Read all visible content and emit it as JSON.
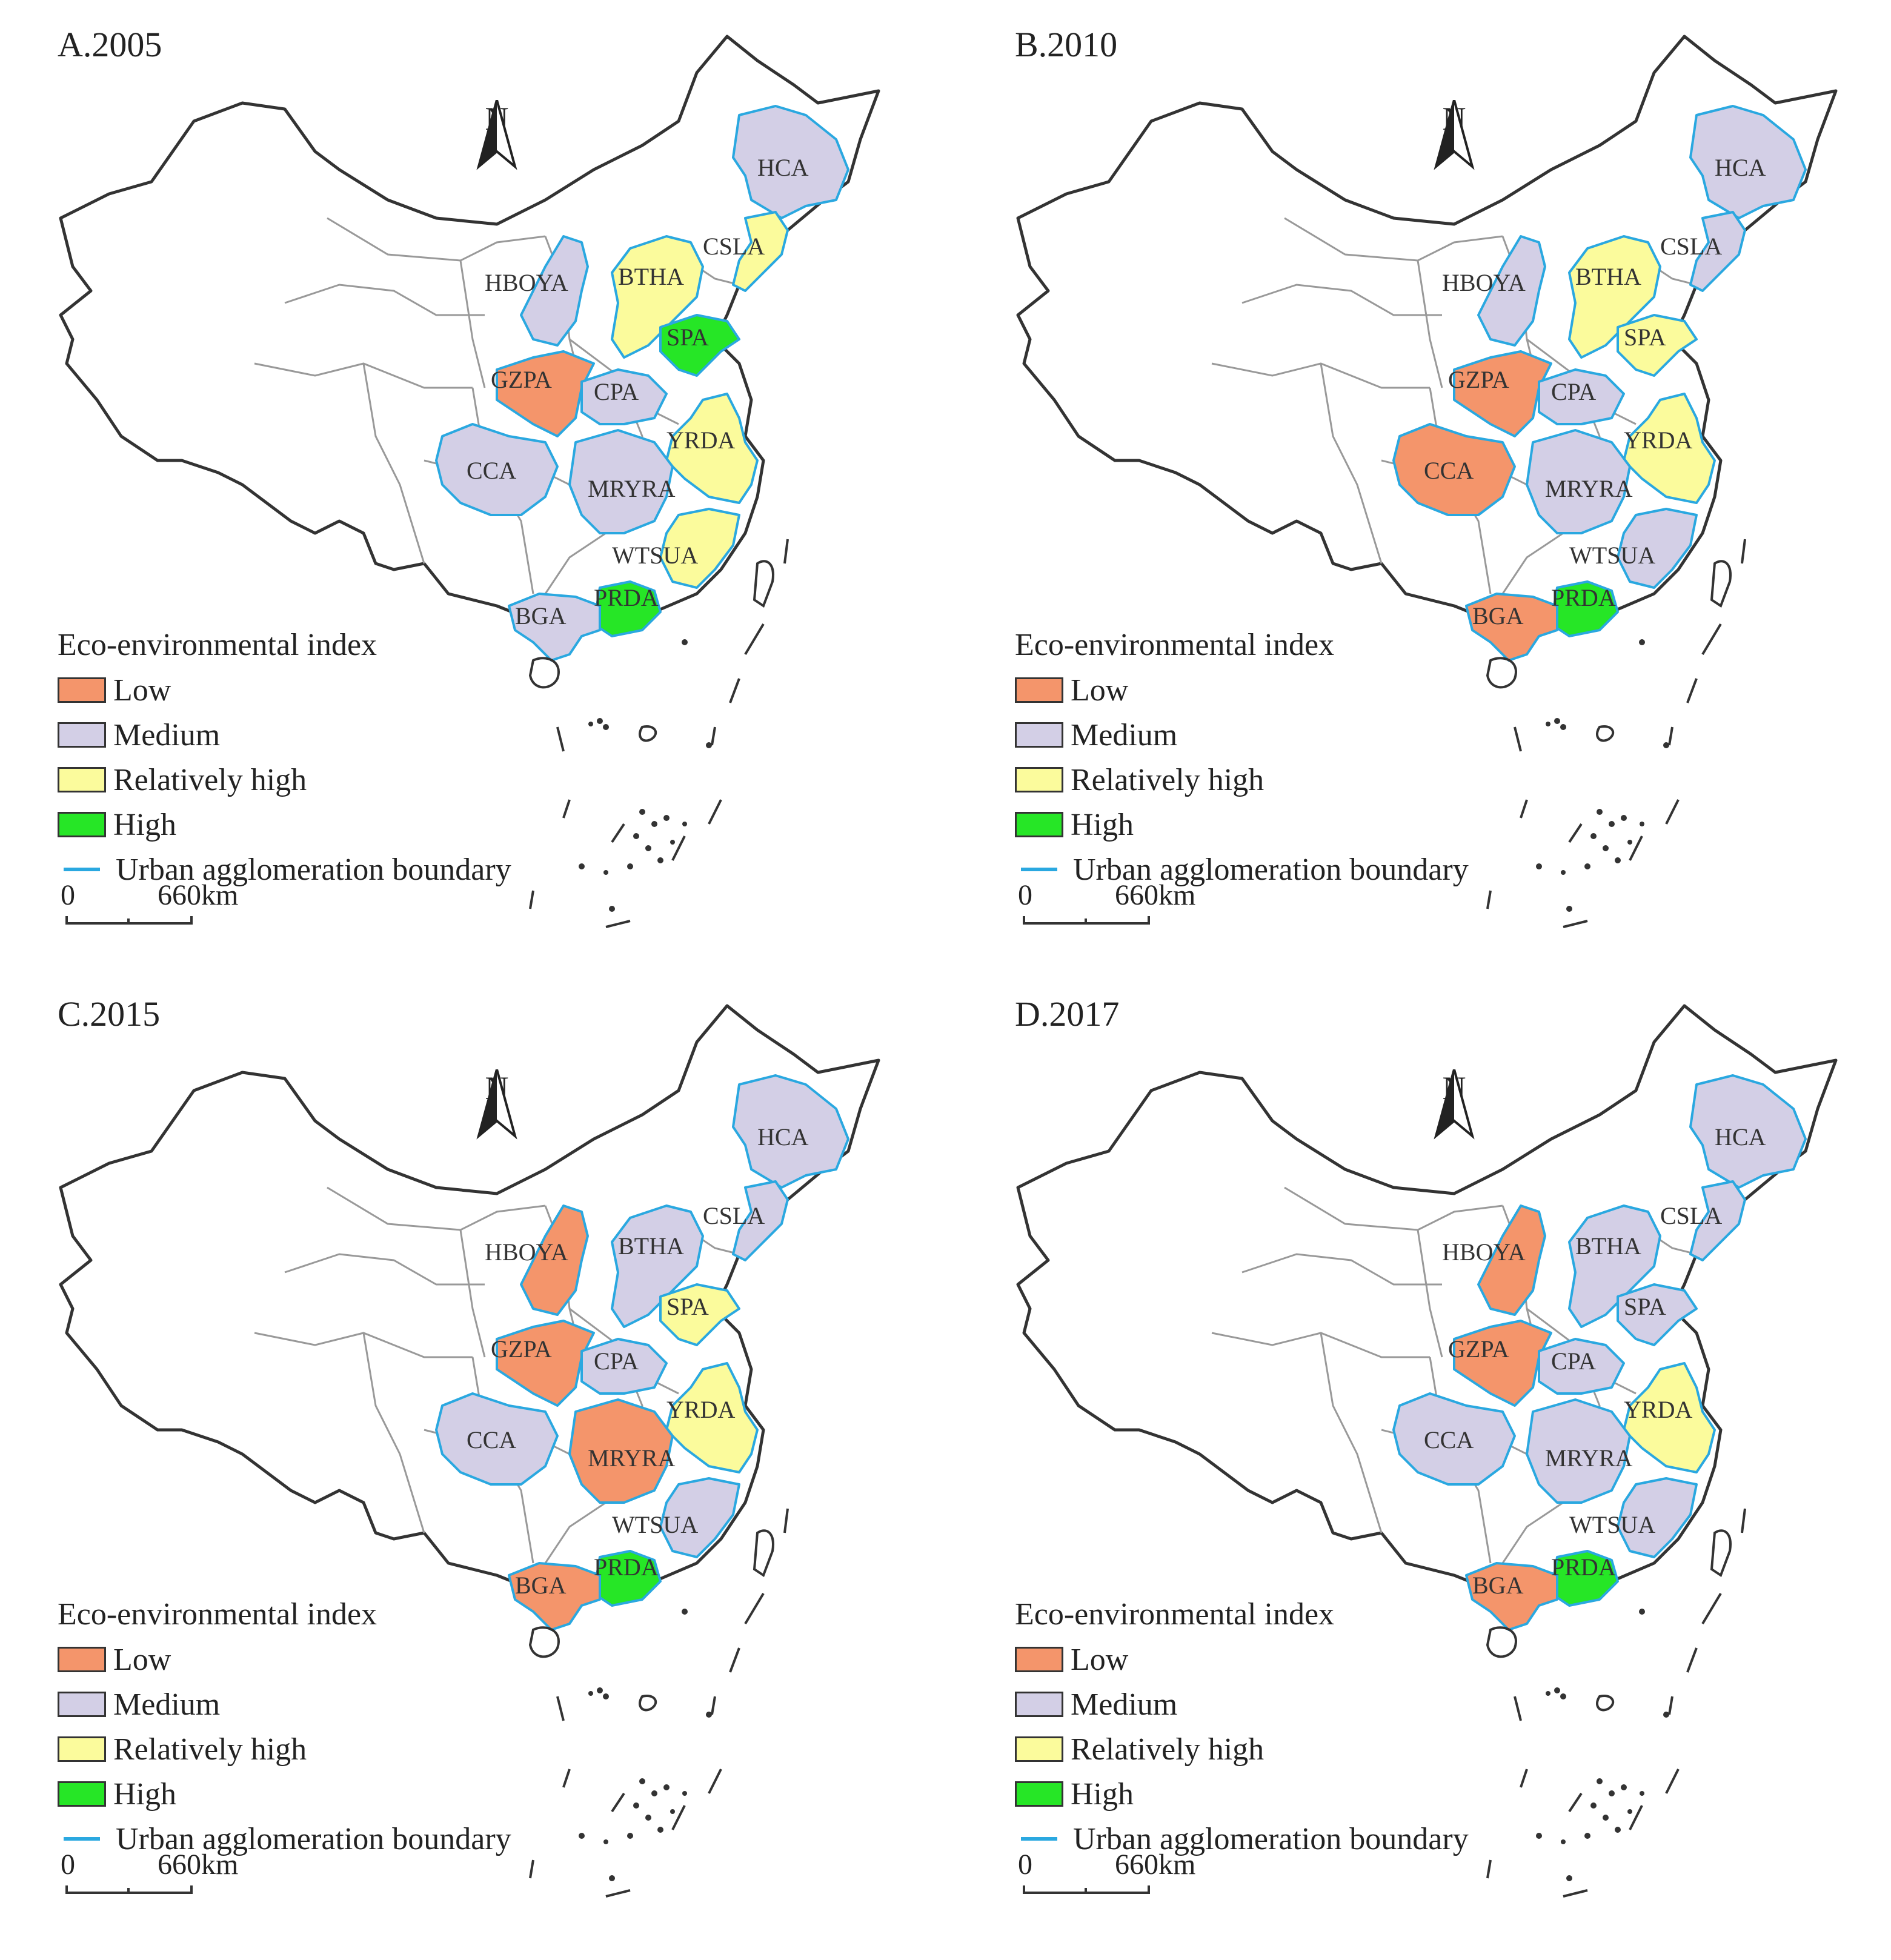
{
  "legend": {
    "title": "Eco-environmental index",
    "items": [
      {
        "key": "low",
        "label": "Low",
        "color": "#f4956b"
      },
      {
        "key": "medium",
        "label": "Medium",
        "color": "#d3cfe6"
      },
      {
        "key": "rhigh",
        "label": "Relatively high",
        "color": "#fbfb9c"
      },
      {
        "key": "high",
        "label": "High",
        "color": "#26e626"
      }
    ],
    "boundary_label": "Urban agglomeration boundary",
    "boundary_color": "#2aa8e0"
  },
  "north_label": "N",
  "scale": {
    "zero": "0",
    "distance": "660km"
  },
  "regions": [
    "HCA",
    "CSLA",
    "BTHA",
    "HBOYA",
    "SPA",
    "GZPA",
    "CPA",
    "YRDA",
    "CCA",
    "MRYRA",
    "WTSUA",
    "PRDA",
    "BGA"
  ],
  "panels": [
    {
      "title": "A.2005",
      "classes": {
        "HCA": "medium",
        "CSLA": "rhigh",
        "BTHA": "rhigh",
        "HBOYA": "medium",
        "SPA": "high",
        "GZPA": "low",
        "CPA": "medium",
        "YRDA": "rhigh",
        "CCA": "medium",
        "MRYRA": "medium",
        "WTSUA": "rhigh",
        "PRDA": "high",
        "BGA": "medium"
      }
    },
    {
      "title": "B.2010",
      "classes": {
        "HCA": "medium",
        "CSLA": "medium",
        "BTHA": "rhigh",
        "HBOYA": "medium",
        "SPA": "rhigh",
        "GZPA": "low",
        "CPA": "medium",
        "YRDA": "rhigh",
        "CCA": "low",
        "MRYRA": "medium",
        "WTSUA": "medium",
        "PRDA": "high",
        "BGA": "low"
      }
    },
    {
      "title": "C.2015",
      "classes": {
        "HCA": "medium",
        "CSLA": "medium",
        "BTHA": "medium",
        "HBOYA": "low",
        "SPA": "rhigh",
        "GZPA": "low",
        "CPA": "medium",
        "YRDA": "rhigh",
        "CCA": "medium",
        "MRYRA": "low",
        "WTSUA": "medium",
        "PRDA": "high",
        "BGA": "low"
      }
    },
    {
      "title": "D.2017",
      "classes": {
        "HCA": "medium",
        "CSLA": "medium",
        "BTHA": "medium",
        "HBOYA": "low",
        "SPA": "medium",
        "GZPA": "low",
        "CPA": "medium",
        "YRDA": "rhigh",
        "CCA": "medium",
        "MRYRA": "medium",
        "WTSUA": "medium",
        "PRDA": "high",
        "BGA": "low"
      }
    }
  ]
}
